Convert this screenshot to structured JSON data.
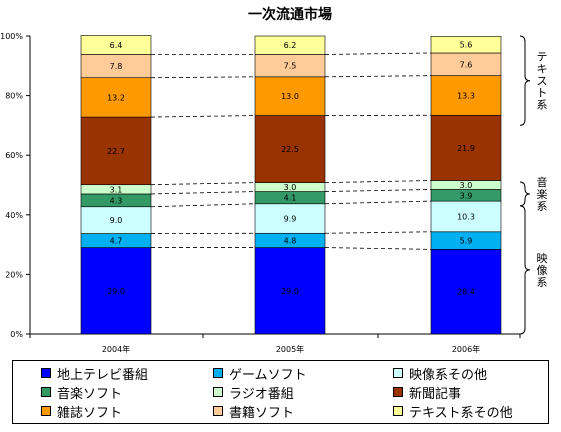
{
  "colors": {
    "地上テレビ番組": "#0000ff",
    "ゲームソフト": "#00b0f0",
    "映像系その他": "#ccffff",
    "音楽ソフト": "#339966",
    "ラジオ番組": "#ccffcc",
    "新聞記事": "#993300",
    "雑誌ソフト": "#ff9900",
    "書籍ソフト": "#ffcc99",
    "テキスト系その他": "#ffff99"
  },
  "chart_data": {
    "type": "bar",
    "stacked": true,
    "percent": true,
    "title": "一次流通市場",
    "categories": [
      "2004年",
      "2005年",
      "2006年"
    ],
    "ylim": [
      0,
      100
    ],
    "y_ticks": [
      "0%",
      "20%",
      "40%",
      "60%",
      "80%",
      "100%"
    ],
    "series": [
      {
        "name": "地上テレビ番組",
        "values": [
          29.0,
          29.0,
          28.4
        ]
      },
      {
        "name": "ゲームソフト",
        "values": [
          4.7,
          4.8,
          5.9
        ]
      },
      {
        "name": "映像系その他",
        "values": [
          9.0,
          9.9,
          10.3
        ]
      },
      {
        "name": "音楽ソフト",
        "values": [
          4.3,
          4.1,
          3.9
        ]
      },
      {
        "name": "ラジオ番組",
        "values": [
          3.1,
          3.0,
          3.0
        ]
      },
      {
        "name": "新聞記事",
        "values": [
          22.7,
          22.5,
          21.9
        ]
      },
      {
        "name": "雑誌ソフト",
        "values": [
          13.2,
          13.0,
          13.3
        ]
      },
      {
        "name": "書籍ソフト",
        "values": [
          7.8,
          7.5,
          7.6
        ]
      },
      {
        "name": "テキスト系その他",
        "values": [
          6.4,
          6.2,
          5.6
        ]
      }
    ],
    "group_brackets": [
      {
        "label": "テキスト系",
        "from": 0.7,
        "to": 1.0
      },
      {
        "label": "音楽系",
        "from": 0.43,
        "to": 0.51
      },
      {
        "label": "映像系",
        "from": 0.0,
        "to": 0.43
      }
    ],
    "legend": [
      [
        "地上テレビ番組",
        "ゲームソフト",
        "映像系その他"
      ],
      [
        "音楽ソフト",
        "ラジオ番組",
        "新聞記事"
      ],
      [
        "雑誌ソフト",
        "書籍ソフト",
        "テキスト系その他"
      ]
    ],
    "legend_placement": "bottom",
    "grid": false
  }
}
